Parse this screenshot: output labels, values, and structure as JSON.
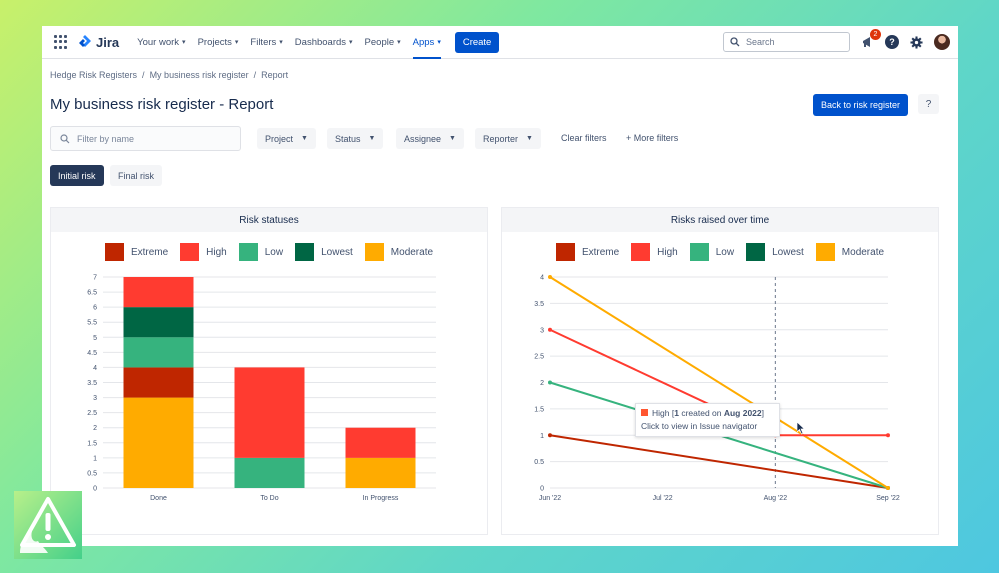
{
  "nav": {
    "logo": "Jira",
    "items": [
      {
        "label": "Your work",
        "active": false
      },
      {
        "label": "Projects",
        "active": false
      },
      {
        "label": "Filters",
        "active": false
      },
      {
        "label": "Dashboards",
        "active": false
      },
      {
        "label": "People",
        "active": false
      },
      {
        "label": "Apps",
        "active": true
      }
    ],
    "create": "Create",
    "search_placeholder": "Search",
    "notifications_count": "2"
  },
  "breadcrumb": [
    "Hedge Risk Registers",
    "My business risk register",
    "Report"
  ],
  "page": {
    "title": "My business risk register - Report",
    "back_button": "Back to risk register",
    "help": "?"
  },
  "filters": {
    "name_placeholder": "Filter by name",
    "dropdowns": [
      "Project",
      "Status",
      "Assignee",
      "Reporter"
    ],
    "clear": "Clear filters",
    "more": "+ More filters"
  },
  "tabs": {
    "initial": "Initial risk",
    "final": "Final risk"
  },
  "legend": [
    {
      "label": "Extreme",
      "color": "#bf2600"
    },
    {
      "label": "High",
      "color": "#ff3b30"
    },
    {
      "label": "Low",
      "color": "#36b37e"
    },
    {
      "label": "Lowest",
      "color": "#006644"
    },
    {
      "label": "Moderate",
      "color": "#ffab00"
    }
  ],
  "chart_data": [
    {
      "type": "bar",
      "title": "Risk statuses",
      "stacked": true,
      "categories": [
        "Done",
        "To Do",
        "In Progress"
      ],
      "series": [
        {
          "name": "Moderate",
          "values": [
            3,
            0,
            1
          ]
        },
        {
          "name": "Extreme",
          "values": [
            1,
            0,
            0
          ]
        },
        {
          "name": "Low",
          "values": [
            1,
            1,
            0
          ]
        },
        {
          "name": "Lowest",
          "values": [
            1,
            0,
            0
          ]
        },
        {
          "name": "High",
          "values": [
            1,
            3,
            1
          ]
        }
      ],
      "ylim": [
        0,
        7
      ],
      "yticks": [
        "0",
        "0.5",
        "1",
        "1.5",
        "2",
        "2.5",
        "3",
        "3.5",
        "4",
        "4.5",
        "5",
        "5.5",
        "6",
        "6.5",
        "7"
      ],
      "legend": "top",
      "grid": true
    },
    {
      "type": "line",
      "title": "Risks raised over time",
      "x": [
        "Jun '22",
        "Jul '22",
        "Aug '22",
        "Sep '22"
      ],
      "series": [
        {
          "name": "Extreme",
          "points": [
            [
              0,
              1
            ],
            [
              3,
              0
            ]
          ]
        },
        {
          "name": "High",
          "points": [
            [
              0,
              3
            ],
            [
              2,
              1
            ],
            [
              3,
              1
            ]
          ]
        },
        {
          "name": "Low",
          "points": [
            [
              0,
              2
            ],
            [
              3,
              0
            ]
          ]
        },
        {
          "name": "Moderate",
          "points": [
            [
              0,
              4
            ],
            [
              3,
              0
            ]
          ]
        }
      ],
      "ylim": [
        0,
        4
      ],
      "yticks": [
        "0",
        "0.5",
        "1",
        "1.5",
        "2",
        "2.5",
        "3",
        "3.5",
        "4"
      ],
      "legend": "top",
      "grid": true
    }
  ],
  "tooltip": {
    "series": "High",
    "count": "1",
    "month": "Aug 2022",
    "prefix": "High [",
    "middle": " created on ",
    "suffix": "]",
    "action": "Click to view in Issue navigator"
  }
}
